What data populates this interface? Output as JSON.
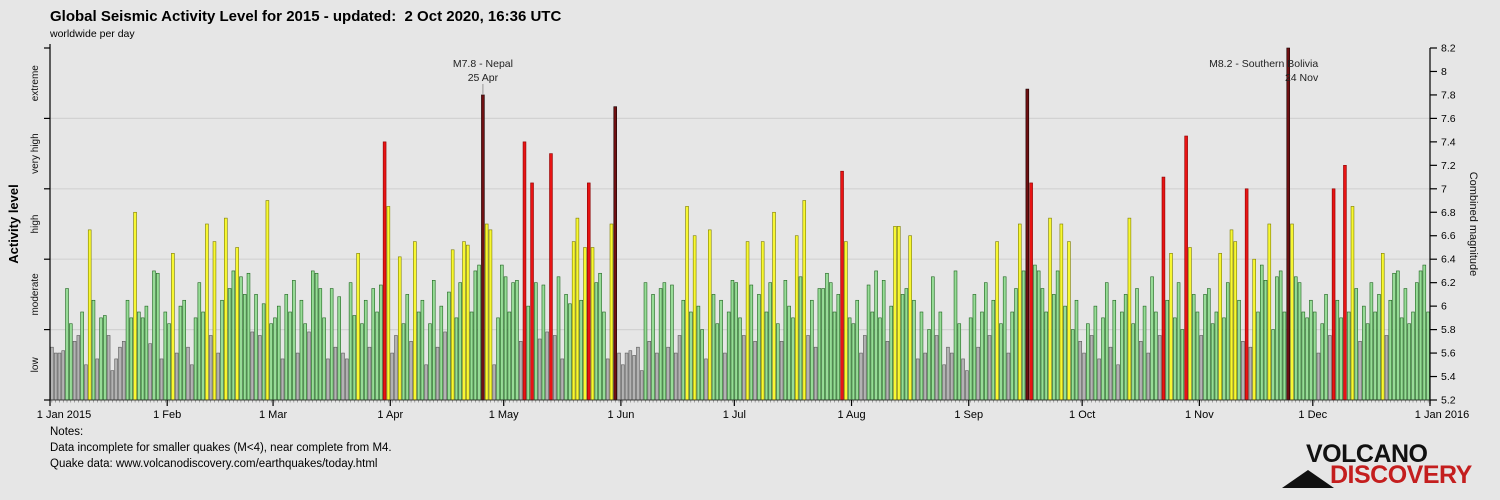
{
  "header": {
    "title": "Global Seismic Activity Level for 2015 - updated:  2 Oct 2020, 16:36 UTC",
    "subtitle": "worldwide per day"
  },
  "notes": {
    "line1": "Notes:",
    "line2": "Data incomplete for smaller quakes (M<4), near complete from M4.",
    "line3": "Quake data: www.volcanodiscovery.com/earthquakes/today.html"
  },
  "logo": {
    "line1": "VOLCANO",
    "line2": "DISCOVERY",
    "accent_color": "#c41e1e"
  },
  "annotations": [
    {
      "line1": "M7.8 - Nepal",
      "line2": "25 Apr",
      "day": 115,
      "align": "center",
      "dx": 0,
      "pointer": true
    },
    {
      "line1": "M8.2 - Southern Bolivia",
      "line2": "24 Nov",
      "day": 328,
      "align": "right",
      "dx": 30,
      "pointer": false
    }
  ],
  "chart_data": {
    "type": "bar",
    "title": "Global Seismic Activity Level for 2015",
    "x_start": "1 Jan 2015",
    "x_end": "1 Jan 2016",
    "granularity": "day",
    "ylim": [
      5.2,
      8.2
    ],
    "y_right_label": "Combined magnitude",
    "y_left_label": "Activity level",
    "y_right_ticks": [
      "5.2",
      "5.4",
      "5.6",
      "5.8",
      "6",
      "6.2",
      "6.4",
      "6.6",
      "6.8",
      "7",
      "7.2",
      "7.4",
      "7.6",
      "7.8",
      "8",
      "8.2"
    ],
    "gridlines": [
      5.8,
      6.4,
      7.0,
      7.6
    ],
    "month_ticks": [
      {
        "day": 1,
        "label": "1 Jan 2015",
        "dx": 14
      },
      {
        "day": 32,
        "label": "1 Feb",
        "dx": 0
      },
      {
        "day": 60,
        "label": "1 Mar",
        "dx": 0
      },
      {
        "day": 91,
        "label": "1 Apr",
        "dx": 0
      },
      {
        "day": 121,
        "label": "1 May",
        "dx": 0
      },
      {
        "day": 152,
        "label": "1 Jun",
        "dx": 0
      },
      {
        "day": 182,
        "label": "1 Jul",
        "dx": 0
      },
      {
        "day": 213,
        "label": "1 Aug",
        "dx": 0
      },
      {
        "day": 244,
        "label": "1 Sep",
        "dx": 0
      },
      {
        "day": 274,
        "label": "1 Oct",
        "dx": 0
      },
      {
        "day": 305,
        "label": "1 Nov",
        "dx": 0
      },
      {
        "day": 335,
        "label": "1 Dec",
        "dx": 0
      },
      {
        "day": 366,
        "label": "1 Jan 2016",
        "dx": 12
      }
    ],
    "levels": [
      {
        "label": "low",
        "from": 5.2,
        "to": 5.8,
        "fill": "#b3b3b3",
        "stroke": "#5a5a5a"
      },
      {
        "label": "moderate",
        "from": 5.8,
        "to": 6.4,
        "fill": "#97dc97",
        "stroke": "#1e641e"
      },
      {
        "label": "high",
        "from": 6.4,
        "to": 7.0,
        "fill": "#f8f832",
        "stroke": "#7c7c00"
      },
      {
        "label": "very high",
        "from": 7.0,
        "to": 7.6,
        "fill": "#e81414",
        "stroke": "#8c0000"
      },
      {
        "label": "extreme",
        "from": 7.6,
        "to": 8.2,
        "fill": "#6f1012",
        "stroke": "#1a0000"
      }
    ],
    "values": [
      5.65,
      5.6,
      5.6,
      5.62,
      6.15,
      5.85,
      5.7,
      5.75,
      5.95,
      5.5,
      6.65,
      6.05,
      5.55,
      5.9,
      5.92,
      5.75,
      5.45,
      5.55,
      5.65,
      5.7,
      6.05,
      5.9,
      6.8,
      5.95,
      5.9,
      6.0,
      5.68,
      6.3,
      6.28,
      5.55,
      5.95,
      5.85,
      6.45,
      5.6,
      6.0,
      6.05,
      5.65,
      5.5,
      5.9,
      6.2,
      5.95,
      6.7,
      5.75,
      6.55,
      5.6,
      6.05,
      6.75,
      6.15,
      6.3,
      6.5,
      6.25,
      6.1,
      6.28,
      5.78,
      6.1,
      5.75,
      6.02,
      6.9,
      5.85,
      5.9,
      6.0,
      5.55,
      6.1,
      5.95,
      6.22,
      5.6,
      6.05,
      5.85,
      5.78,
      6.3,
      6.28,
      6.15,
      5.9,
      5.55,
      6.15,
      5.65,
      6.08,
      5.6,
      5.55,
      6.2,
      5.92,
      6.45,
      5.85,
      6.05,
      5.65,
      6.15,
      5.95,
      6.18,
      7.4,
      6.85,
      5.6,
      5.75,
      6.42,
      5.85,
      6.1,
      5.7,
      6.55,
      5.95,
      6.05,
      5.5,
      5.85,
      6.22,
      5.65,
      6.0,
      5.78,
      6.12,
      6.48,
      5.9,
      6.2,
      6.55,
      6.52,
      5.95,
      6.3,
      6.35,
      7.8,
      6.7,
      6.65,
      5.5,
      5.9,
      6.35,
      6.25,
      5.95,
      6.2,
      6.22,
      5.7,
      7.4,
      6.0,
      7.05,
      6.2,
      5.72,
      6.18,
      5.78,
      7.3,
      5.75,
      6.25,
      5.55,
      6.1,
      6.02,
      6.55,
      6.75,
      6.05,
      6.5,
      7.05,
      6.5,
      6.2,
      6.28,
      5.95,
      5.55,
      6.7,
      7.7,
      5.6,
      5.5,
      5.6,
      5.62,
      5.58,
      5.65,
      5.45,
      6.2,
      5.7,
      6.1,
      5.6,
      6.15,
      6.2,
      5.65,
      6.18,
      5.6,
      5.75,
      6.05,
      6.85,
      5.95,
      6.6,
      6.0,
      5.8,
      5.55,
      6.65,
      6.1,
      5.85,
      6.05,
      5.6,
      5.95,
      6.22,
      6.2,
      5.9,
      5.75,
      6.55,
      6.18,
      5.7,
      6.1,
      6.55,
      5.95,
      6.2,
      6.8,
      5.85,
      5.7,
      6.22,
      6.0,
      5.9,
      6.6,
      6.25,
      6.9,
      5.75,
      6.05,
      5.65,
      6.15,
      6.15,
      6.28,
      6.2,
      5.95,
      6.1,
      7.15,
      6.55,
      5.9,
      5.85,
      6.05,
      5.6,
      5.75,
      6.18,
      5.95,
      6.3,
      5.9,
      6.22,
      5.7,
      6.0,
      6.68,
      6.68,
      6.1,
      6.15,
      6.6,
      6.05,
      5.55,
      5.95,
      5.6,
      5.8,
      6.25,
      5.75,
      5.95,
      5.5,
      5.65,
      5.6,
      6.3,
      5.85,
      5.55,
      5.45,
      5.9,
      6.1,
      5.65,
      5.95,
      6.2,
      5.75,
      6.05,
      6.55,
      5.85,
      6.25,
      5.6,
      5.95,
      6.15,
      6.7,
      6.3,
      7.85,
      7.05,
      6.35,
      6.3,
      6.15,
      5.95,
      6.75,
      6.1,
      6.3,
      6.7,
      6.0,
      6.55,
      5.8,
      6.05,
      5.7,
      5.6,
      5.85,
      5.75,
      6.0,
      5.55,
      5.9,
      6.2,
      5.65,
      6.05,
      5.5,
      5.95,
      6.1,
      6.75,
      5.85,
      6.15,
      5.7,
      6.0,
      5.6,
      6.25,
      5.95,
      5.75,
      7.1,
      6.05,
      6.45,
      5.9,
      6.2,
      5.8,
      7.45,
      6.5,
      6.1,
      5.95,
      5.75,
      6.1,
      6.15,
      5.85,
      5.95,
      6.45,
      5.9,
      6.2,
      6.65,
      6.55,
      6.05,
      5.7,
      7.0,
      5.65,
      6.4,
      5.95,
      6.35,
      6.22,
      6.7,
      5.8,
      6.25,
      6.3,
      5.95,
      8.2,
      6.7,
      6.25,
      6.2,
      5.95,
      5.9,
      6.05,
      5.95,
      5.6,
      5.85,
      6.1,
      5.75,
      7.0,
      6.05,
      5.9,
      7.2,
      5.95,
      6.85,
      6.15,
      5.7,
      6.0,
      5.85,
      6.2,
      5.95,
      6.1,
      6.45,
      5.75,
      6.05,
      6.28,
      6.3,
      5.9,
      6.15,
      5.85,
      5.95,
      6.2,
      6.3,
      6.35,
      5.95
    ]
  }
}
